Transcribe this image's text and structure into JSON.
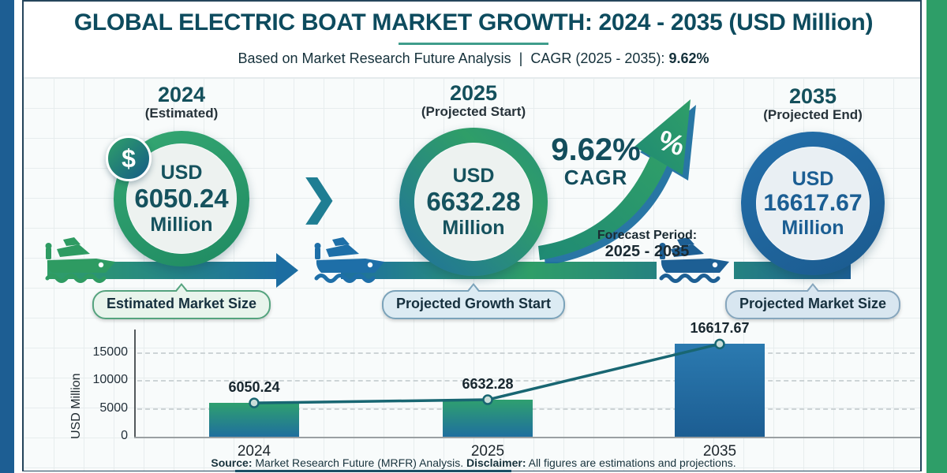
{
  "header": {
    "title": "GLOBAL ELECTRIC BOAT MARKET GROWTH: 2024 - 2035 (USD Million)",
    "subtitle_prefix": "Based on Market Research Future Analysis",
    "subtitle_separator": "|",
    "subtitle_cagr_label": "CAGR (2025 - 2035):",
    "subtitle_cagr_value": "9.62%"
  },
  "milestones": [
    {
      "year": "2024",
      "tag": "(Estimated)",
      "currency": "USD",
      "value": "6050.24",
      "unit": "Million",
      "label": "Estimated Market Size"
    },
    {
      "year": "2025",
      "tag": "(Projected Start)",
      "currency": "USD",
      "value": "6632.28",
      "unit": "Million",
      "label": "Projected Growth Start"
    },
    {
      "year": "2035",
      "tag": "(Projected End)",
      "currency": "USD",
      "value": "16617.67",
      "unit": "Million",
      "label": "Projected Market Size"
    }
  ],
  "dollar_glyph": "$",
  "chevron_glyph": "❯",
  "cagr": {
    "value": "9.62%",
    "label": "CAGR",
    "percent_glyph": "%"
  },
  "forecast": {
    "label": "Forecast Period:",
    "range": "2025 - 2035"
  },
  "chart_data": {
    "type": "bar",
    "categories": [
      "2024",
      "2025",
      "2035"
    ],
    "values": [
      6050.24,
      6632.28,
      16617.67
    ],
    "labels": [
      "6050.24",
      "6632.28",
      "16617.67"
    ],
    "title": "",
    "xlabel": "",
    "ylabel": "USD Million",
    "yticks": [
      0,
      5000,
      10000,
      15000
    ],
    "ylim": [
      0,
      19000
    ],
    "grid": "horizontal-dashed",
    "legend": "none",
    "overlay_line_series": {
      "name": "trend",
      "x": [
        "2024",
        "2025",
        "2035"
      ],
      "values": [
        6050.24,
        6632.28,
        16617.67
      ]
    },
    "bar_colors": [
      [
        "#2fa06f",
        "#1f6f9e"
      ],
      [
        "#2fa06f",
        "#1f6f9e"
      ],
      [
        "#2b7ab0",
        "#1c5d92"
      ]
    ],
    "line_color": "#186672",
    "marker_fill": "#c9ded9"
  },
  "footer": {
    "source_label": "Source:",
    "source_text": "Market Research Future (MRFR) Analysis.",
    "disclaimer_label": "Disclaimer:",
    "disclaimer_text": "All figures are estimations and projections."
  },
  "colors": {
    "title": "#0d4b5e",
    "green": "#2f9e68",
    "blue": "#1d5f94",
    "teal": "#1f7e93",
    "left_stripe": "#1d5e93",
    "right_stripe": "#2e9e68",
    "pill_green_bg": "#e8f4ec",
    "pill_blue_bg": "#dcebf3"
  }
}
